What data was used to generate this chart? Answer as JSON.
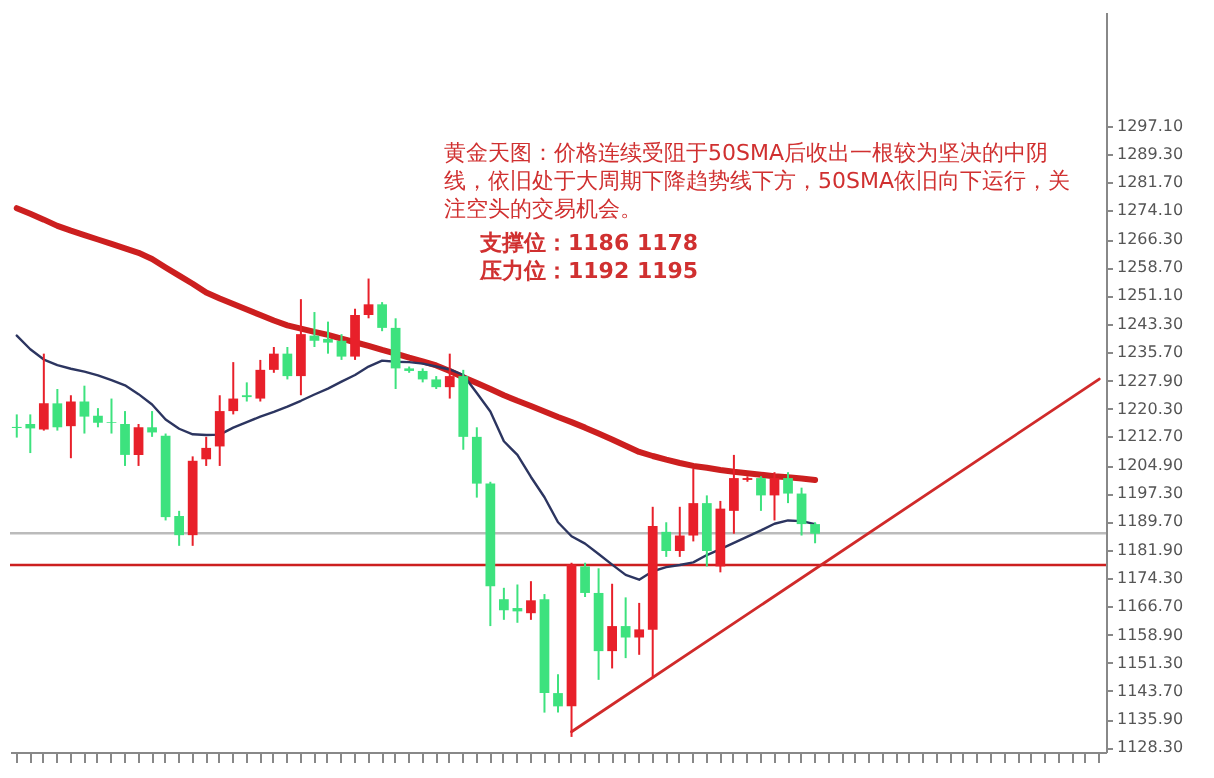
{
  "chart_data": {
    "type": "candlestick",
    "categories": [
      null,
      null,
      null,
      null,
      null,
      null,
      null,
      null,
      null,
      null,
      null,
      null,
      null,
      null,
      null,
      null,
      null,
      null,
      null,
      null,
      null,
      null,
      null,
      null,
      null,
      null,
      null,
      null,
      null,
      null,
      null,
      null,
      null,
      null,
      null,
      null,
      null,
      null,
      null,
      null,
      null,
      null,
      null,
      null,
      null,
      null,
      null,
      null,
      null,
      null,
      null,
      null,
      null,
      null,
      null,
      null,
      null,
      null,
      null,
      null,
      null,
      null,
      null,
      null,
      null,
      null,
      null,
      null,
      null,
      null,
      null,
      null,
      null,
      null,
      null,
      null,
      null,
      null,
      null,
      null,
      null
    ],
    "ohlc": [
      [
        1215.3,
        1218.7,
        1212.4,
        1215.0
      ],
      [
        1216.1,
        1218.7,
        1208.2,
        1214.9
      ],
      [
        1214.6,
        1235.2,
        1214.3,
        1221.7
      ],
      [
        1221.7,
        1225.6,
        1214.3,
        1215.2
      ],
      [
        1215.5,
        1223.9,
        1206.8,
        1222.2
      ],
      [
        1222.2,
        1226.5,
        1213.5,
        1218.1
      ],
      [
        1218.3,
        1220.4,
        1215.2,
        1216.4
      ],
      [
        1216.6,
        1223.0,
        1213.5,
        1216.4
      ],
      [
        1216.1,
        1219.6,
        1204.7,
        1207.7
      ],
      [
        1207.7,
        1216.1,
        1204.7,
        1215.2
      ],
      [
        1215.2,
        1219.6,
        1212.6,
        1213.8
      ],
      [
        1212.9,
        1213.5,
        1189.9,
        1190.8
      ],
      [
        1191.1,
        1192.5,
        1183.0,
        1185.9
      ],
      [
        1185.9,
        1207.3,
        1183.0,
        1206.1
      ],
      [
        1206.5,
        1212.6,
        1204.7,
        1209.6
      ],
      [
        1210.0,
        1223.9,
        1204.7,
        1219.6
      ],
      [
        1219.6,
        1232.9,
        1218.7,
        1223.0
      ],
      [
        1223.9,
        1227.4,
        1222.2,
        1223.4
      ],
      [
        1223.0,
        1233.5,
        1222.2,
        1230.8
      ],
      [
        1230.8,
        1237.0,
        1230.0,
        1235.2
      ],
      [
        1235.2,
        1237.0,
        1228.2,
        1229.1
      ],
      [
        1229.1,
        1250.0,
        1223.9,
        1240.5
      ],
      [
        1240.1,
        1246.5,
        1237.0,
        1238.7
      ],
      [
        1239.2,
        1243.9,
        1235.2,
        1238.2
      ],
      [
        1238.7,
        1240.5,
        1233.5,
        1234.4
      ],
      [
        1234.4,
        1247.4,
        1233.5,
        1245.7
      ],
      [
        1245.7,
        1255.6,
        1244.8,
        1248.6
      ],
      [
        1248.6,
        1249.2,
        1241.3,
        1242.2
      ],
      [
        1242.2,
        1244.8,
        1225.6,
        1231.2
      ],
      [
        1231.2,
        1231.7,
        1230.0,
        1230.5
      ],
      [
        1230.5,
        1231.2,
        1227.4,
        1228.2
      ],
      [
        1228.2,
        1229.1,
        1225.6,
        1226.1
      ],
      [
        1226.1,
        1235.2,
        1223.0,
        1229.1
      ],
      [
        1229.1,
        1230.8,
        1209.1,
        1212.6
      ],
      [
        1212.6,
        1215.2,
        1196.1,
        1199.9
      ],
      [
        1199.9,
        1200.4,
        1161.2,
        1172.0
      ],
      [
        1168.5,
        1171.6,
        1162.9,
        1165.5
      ],
      [
        1166.1,
        1172.5,
        1162.1,
        1165.2
      ],
      [
        1164.7,
        1173.4,
        1162.9,
        1168.2
      ],
      [
        1168.5,
        1169.9,
        1137.7,
        1143.0
      ],
      [
        1143.0,
        1148.1,
        1137.7,
        1139.4
      ],
      [
        1139.4,
        1178.4,
        1131.1,
        1177.9
      ],
      [
        1177.4,
        1178.4,
        1169.1,
        1170.2
      ],
      [
        1170.2,
        1176.9,
        1146.6,
        1154.4
      ],
      [
        1154.4,
        1172.7,
        1149.7,
        1161.2
      ],
      [
        1161.2,
        1169.0,
        1152.5,
        1158.1
      ],
      [
        1158.1,
        1167.5,
        1153.4,
        1160.3
      ],
      [
        1160.2,
        1193.6,
        1147.1,
        1188.4
      ],
      [
        1186.8,
        1189.4,
        1180.0,
        1181.6
      ],
      [
        1181.6,
        1193.6,
        1180.0,
        1185.8
      ],
      [
        1185.8,
        1204.0,
        1184.2,
        1194.6
      ],
      [
        1194.6,
        1196.7,
        1177.4,
        1181.6
      ],
      [
        1177.4,
        1195.2,
        1175.8,
        1193.1
      ],
      [
        1192.5,
        1207.7,
        1186.3,
        1201.4
      ],
      [
        1200.9,
        1201.9,
        1200.4,
        1201.4
      ],
      [
        1201.4,
        1201.9,
        1192.5,
        1196.7
      ],
      [
        1196.7,
        1203.0,
        1189.9,
        1201.4
      ],
      [
        1201.4,
        1203.0,
        1194.6,
        1197.2
      ],
      [
        1197.2,
        1198.8,
        1185.8,
        1188.9
      ],
      [
        1188.9,
        1189.4,
        1183.7,
        1186.3
      ],
      null,
      null,
      null,
      null,
      null,
      null,
      null,
      null,
      null,
      null,
      null,
      null,
      null,
      null,
      null,
      null,
      null,
      null,
      null,
      null,
      null
    ],
    "colors": [
      "#3de27e",
      "#3de27e",
      "#e8202a",
      "#3de27e",
      "#e8202a",
      "#3de27e",
      "#3de27e",
      "#3de27e",
      "#3de27e",
      "#e8202a",
      "#3de27e",
      "#3de27e",
      "#3de27e",
      "#e8202a",
      "#e8202a",
      "#e8202a",
      "#e8202a",
      "#3de27e",
      "#e8202a",
      "#e8202a",
      "#3de27e",
      "#e8202a",
      "#3de27e",
      "#3de27e",
      "#3de27e",
      "#e8202a",
      "#e8202a",
      "#3de27e",
      "#3de27e",
      "#3de27e",
      "#3de27e",
      "#3de27e",
      "#e8202a",
      "#3de27e",
      "#3de27e",
      "#3de27e",
      "#3de27e",
      "#3de27e",
      "#e8202a",
      "#3de27e",
      "#3de27e",
      "#e8202a",
      "#3de27e",
      "#3de27e",
      "#e8202a",
      "#3de27e",
      "#e8202a",
      "#e8202a",
      "#3de27e",
      "#e8202a",
      "#e8202a",
      "#3de27e",
      "#e8202a",
      "#e8202a",
      "#e8202a",
      "#3de27e",
      "#e8202a",
      "#3de27e",
      "#3de27e",
      "#3de27e",
      null,
      null,
      null,
      null,
      null,
      null,
      null,
      null,
      null,
      null,
      null,
      null,
      null,
      null,
      null,
      null,
      null,
      null,
      null,
      null,
      null
    ],
    "series": [
      {
        "type": "line",
        "color": "#cc1f1f",
        "values": [
          1274.7,
          1273.2,
          1271.6,
          1269.9,
          1268.6,
          1267.4,
          1266.2,
          1265.0,
          1263.8,
          1262.6,
          1260.9,
          1258.6,
          1256.4,
          1254.2,
          1251.8,
          1250.2,
          1248.7,
          1247.2,
          1245.7,
          1244.2,
          1242.9,
          1242.0,
          1241.1,
          1240.3,
          1239.3,
          1238.3,
          1237.3,
          1236.2,
          1235.2,
          1234.1,
          1233.1,
          1232.0,
          1230.5,
          1228.8,
          1227.2,
          1225.6,
          1223.9,
          1222.4,
          1221.0,
          1219.5,
          1218.0,
          1216.6,
          1215.1,
          1213.5,
          1211.9,
          1210.2,
          1208.5,
          1207.4,
          1206.4,
          1205.5,
          1204.7,
          1204.2,
          1203.6,
          1203.1,
          1202.7,
          1202.3,
          1201.9,
          1201.6,
          1201.3,
          1200.9,
          null,
          null,
          null,
          null,
          null,
          null,
          null,
          null,
          null,
          null,
          null,
          null,
          null,
          null,
          null,
          null,
          null,
          null,
          null,
          null,
          null
        ]
      },
      {
        "type": "line",
        "color": "#2c3560",
        "values": [
          1240.1,
          1236.4,
          1233.6,
          1232.1,
          1231.1,
          1230.3,
          1229.3,
          1228.0,
          1226.6,
          1224.2,
          1221.4,
          1217.3,
          1214.8,
          1213.3,
          1213.1,
          1213.2,
          1215.1,
          1216.6,
          1218.1,
          1219.4,
          1220.8,
          1222.4,
          1224.1,
          1225.7,
          1227.6,
          1229.4,
          1231.7,
          1233.3,
          1233.0,
          1232.9,
          1232.5,
          1231.7,
          1230.9,
          1229.4,
          1224.5,
          1219.5,
          1211.4,
          1207.7,
          1201.7,
          1196.2,
          1189.4,
          1185.6,
          1183.6,
          1180.8,
          1177.9,
          1175.1,
          1173.8,
          1176.1,
          1177.2,
          1177.8,
          1178.5,
          1180.5,
          1182.1,
          1183.8,
          1185.5,
          1187.2,
          1189.0,
          1189.9,
          1189.7,
          1188.9,
          null,
          null,
          null,
          null,
          null,
          null,
          null,
          null,
          null,
          null,
          null,
          null,
          null,
          null,
          null,
          null,
          null,
          null,
          null,
          null,
          null
        ]
      },
      {
        "type": "line",
        "color": "#d02a2a",
        "values": [
          null,
          null,
          null,
          null,
          null,
          null,
          null,
          null,
          null,
          null,
          null,
          null,
          null,
          null,
          null,
          null,
          null,
          null,
          null,
          null,
          null,
          null,
          null,
          null,
          null,
          null,
          null,
          null,
          null,
          null,
          null,
          null,
          null,
          null,
          null,
          null,
          null,
          null,
          null,
          null,
          null,
          1132.5,
          null,
          null,
          null,
          null,
          null,
          null,
          null,
          null,
          null,
          null,
          null,
          null,
          null,
          null,
          null,
          null,
          null,
          null,
          null,
          null,
          null,
          null,
          null,
          null,
          null,
          null,
          null,
          null,
          null,
          null,
          null,
          null,
          null,
          null,
          null,
          null,
          null,
          null,
          1228.3
        ]
      }
    ],
    "ylim": [
      1127,
      1328
    ],
    "yticks": [
      {
        "value": 1128.3,
        "label": "1128.30"
      },
      {
        "value": 1135.9,
        "label": "1135.90"
      },
      {
        "value": 1143.7,
        "label": "1143.70"
      },
      {
        "value": 1151.3,
        "label": "1151.30"
      },
      {
        "value": 1158.9,
        "label": "1158.90"
      },
      {
        "value": 1166.7,
        "label": "1166.70"
      },
      {
        "value": 1174.3,
        "label": "1174.30"
      },
      {
        "value": 1181.9,
        "label": "1181.90"
      },
      {
        "value": 1189.7,
        "label": "1189.70"
      },
      {
        "value": 1197.3,
        "label": "1197.30"
      },
      {
        "value": 1204.9,
        "label": "1204.90"
      },
      {
        "value": 1212.7,
        "label": "1212.70"
      },
      {
        "value": 1220.3,
        "label": "1220.30"
      },
      {
        "value": 1227.9,
        "label": "1227.90"
      },
      {
        "value": 1235.7,
        "label": "1235.70"
      },
      {
        "value": 1243.3,
        "label": "1243.30"
      },
      {
        "value": 1251.1,
        "label": "1251.10"
      },
      {
        "value": 1258.7,
        "label": "1258.70"
      },
      {
        "value": 1266.3,
        "label": "1266.30"
      },
      {
        "value": 1274.1,
        "label": "1274.10"
      },
      {
        "value": 1281.7,
        "label": "1281.70"
      },
      {
        "value": 1289.3,
        "label": "1289.30"
      },
      {
        "value": 1297.1,
        "label": "1297.10"
      }
    ],
    "ref_lines": [
      {
        "axis": "y",
        "value": 1186.4,
        "color": "#bbbbbb"
      },
      {
        "axis": "y",
        "value": 1177.8,
        "color": "#cc1f1f"
      }
    ],
    "annotations": [
      "黄金天图：价格连续受阻于50SMA后收出一根较为坚决的中阴线，依旧处于大周期下降趋势线下方，50SMA依旧向下运行，关注空头的交易机会。",
      "支撑位：1186 1178",
      "压力位：1192 1195"
    ],
    "tick_labels": "y",
    "grid": false
  }
}
